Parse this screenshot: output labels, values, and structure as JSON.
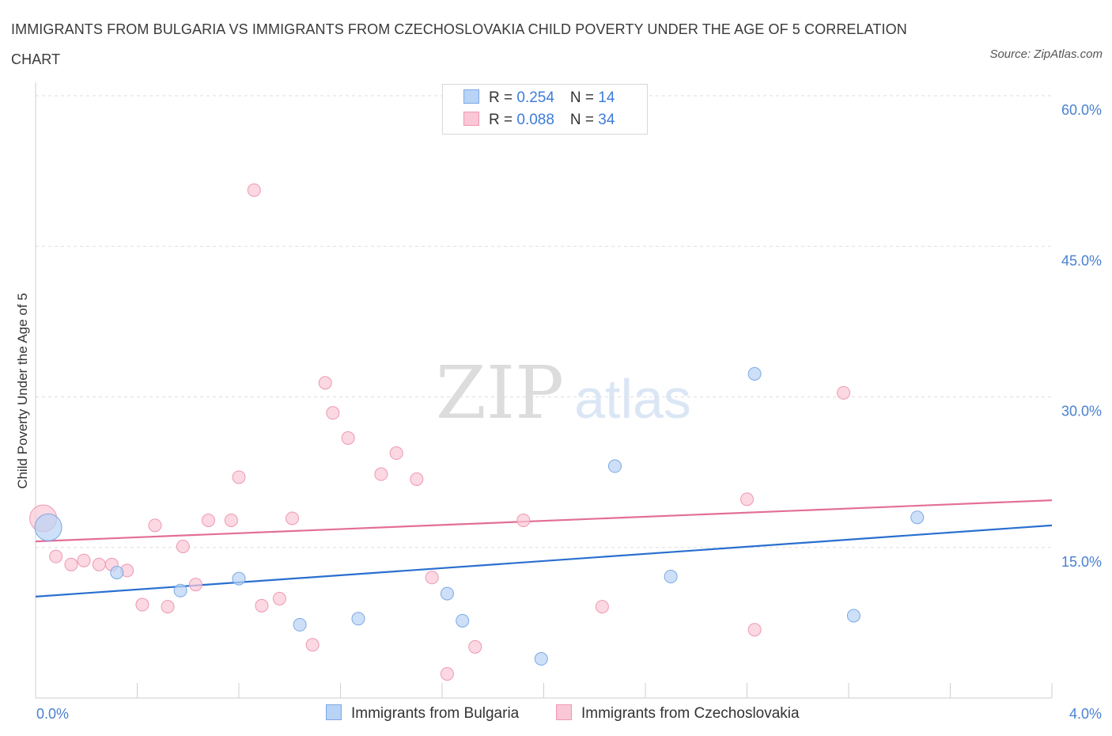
{
  "title": "IMMIGRANTS FROM BULGARIA VS IMMIGRANTS FROM CZECHOSLOVAKIA CHILD POVERTY UNDER THE AGE OF 5 CORRELATION CHART",
  "source": "Source: ZipAtlas.com",
  "watermark": {
    "zip": "ZIP",
    "atlas": "atlas"
  },
  "legend_top": [
    {
      "r_label": "R = ",
      "r_value": "0.254",
      "n_label": "N = ",
      "n_value": "14",
      "color": "#b8d3f5",
      "border": "#7aa8e6"
    },
    {
      "r_label": "R = ",
      "r_value": "0.088",
      "n_label": "N = ",
      "n_value": "34",
      "color": "#f9c7d5",
      "border": "#ee98b2"
    }
  ],
  "chart_data": {
    "type": "scatter",
    "title": "IMMIGRANTS FROM BULGARIA VS IMMIGRANTS FROM CZECHOSLOVAKIA CHILD POVERTY UNDER THE AGE OF 5 CORRELATION CHART",
    "xlabel": "",
    "ylabel": "Child Poverty Under the Age of 5",
    "xlim": [
      0,
      4
    ],
    "ylim": [
      0,
      60
    ],
    "x_tick_labels": [
      "0.0%",
      "4.0%"
    ],
    "y_ticks": [
      15,
      30,
      45,
      60
    ],
    "y_tick_labels": [
      "15.0%",
      "30.0%",
      "45.0%",
      "60.0%"
    ],
    "grid": true,
    "legend_position": "bottom",
    "series": [
      {
        "name": "Immigrants from Bulgaria",
        "color": "#b8d3f5",
        "edge": "#7aa8e6",
        "line_color": "#2a6fcf",
        "trend": [
          [
            0,
            10.1
          ],
          [
            4,
            17.2
          ]
        ],
        "points": [
          {
            "x": 0.05,
            "y": 17.0,
            "big": true
          },
          {
            "x": 0.32,
            "y": 12.5
          },
          {
            "x": 0.57,
            "y": 10.7
          },
          {
            "x": 0.8,
            "y": 11.9
          },
          {
            "x": 1.04,
            "y": 7.3
          },
          {
            "x": 1.27,
            "y": 7.9
          },
          {
            "x": 1.62,
            "y": 10.4
          },
          {
            "x": 1.68,
            "y": 7.7
          },
          {
            "x": 1.99,
            "y": 3.9
          },
          {
            "x": 2.28,
            "y": 23.1
          },
          {
            "x": 2.5,
            "y": 12.1
          },
          {
            "x": 2.83,
            "y": 32.3
          },
          {
            "x": 3.22,
            "y": 8.2
          },
          {
            "x": 3.47,
            "y": 18.0
          }
        ]
      },
      {
        "name": "Immigrants from Czechoslovakia",
        "color": "#f9c7d5",
        "edge": "#ee98b2",
        "line_color": "#e36f95",
        "trend": [
          [
            0,
            15.6
          ],
          [
            4,
            19.7
          ]
        ],
        "points": [
          {
            "x": 0.03,
            "y": 17.9,
            "big": true
          },
          {
            "x": 0.08,
            "y": 14.1
          },
          {
            "x": 0.14,
            "y": 13.3
          },
          {
            "x": 0.19,
            "y": 13.7
          },
          {
            "x": 0.25,
            "y": 13.3
          },
          {
            "x": 0.3,
            "y": 13.3
          },
          {
            "x": 0.36,
            "y": 12.7
          },
          {
            "x": 0.42,
            "y": 9.3
          },
          {
            "x": 0.47,
            "y": 17.2
          },
          {
            "x": 0.52,
            "y": 9.1
          },
          {
            "x": 0.58,
            "y": 15.1
          },
          {
            "x": 0.63,
            "y": 11.3
          },
          {
            "x": 0.68,
            "y": 17.7
          },
          {
            "x": 0.77,
            "y": 17.7
          },
          {
            "x": 0.8,
            "y": 22.0
          },
          {
            "x": 0.86,
            "y": 50.6
          },
          {
            "x": 0.89,
            "y": 9.2
          },
          {
            "x": 0.96,
            "y": 9.9
          },
          {
            "x": 1.01,
            "y": 17.9
          },
          {
            "x": 1.09,
            "y": 5.3
          },
          {
            "x": 1.14,
            "y": 31.4
          },
          {
            "x": 1.17,
            "y": 28.4
          },
          {
            "x": 1.23,
            "y": 25.9
          },
          {
            "x": 1.36,
            "y": 22.3
          },
          {
            "x": 1.42,
            "y": 24.4
          },
          {
            "x": 1.5,
            "y": 21.8
          },
          {
            "x": 1.56,
            "y": 12.0
          },
          {
            "x": 1.62,
            "y": 2.4
          },
          {
            "x": 1.73,
            "y": 5.1
          },
          {
            "x": 1.92,
            "y": 17.7
          },
          {
            "x": 2.23,
            "y": 9.1
          },
          {
            "x": 2.8,
            "y": 19.8
          },
          {
            "x": 2.83,
            "y": 6.8
          },
          {
            "x": 3.18,
            "y": 30.4
          }
        ]
      }
    ]
  }
}
